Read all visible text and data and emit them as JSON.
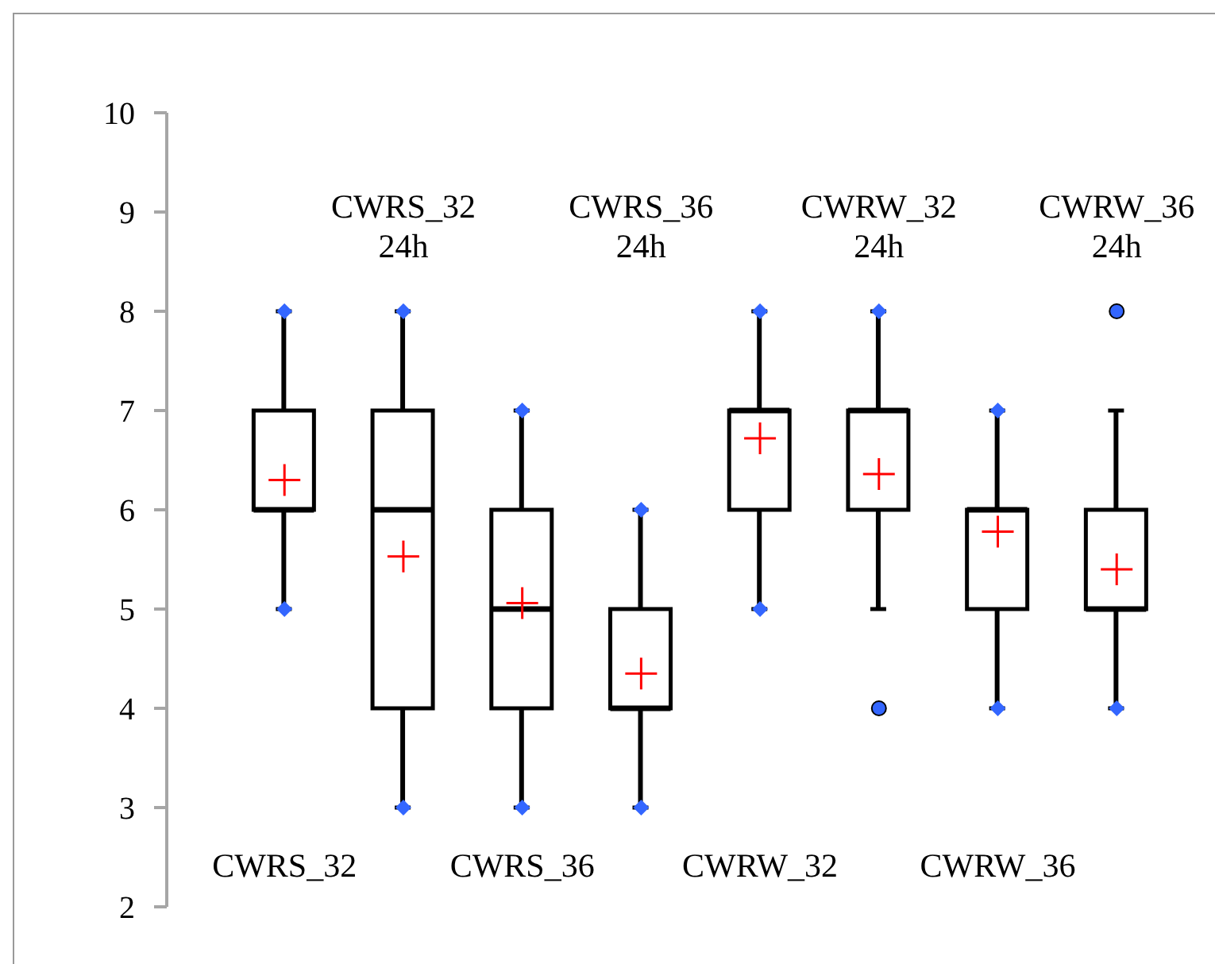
{
  "chart_data": {
    "type": "box",
    "categories": [
      "CWRS_32",
      "CWRS_32 24h",
      "CWRS_36",
      "CWRS_36 24h",
      "CWRW_32",
      "CWRW_32 24h",
      "CWRW_36",
      "CWRW_36 24h"
    ],
    "color": "#000000",
    "series": [
      {
        "type": "scatter",
        "color": "#3366ff",
        "marker": "diamond",
        "x": [
          "CWRS_32",
          "CWRS_32",
          "CWRS_32 24h",
          "CWRS_32 24h",
          "CWRS_36",
          "CWRS_36",
          "CWRS_36 24h",
          "CWRS_36 24h",
          "CWRW_32",
          "CWRW_32",
          "CWRW_32 24h",
          "CWRW_36",
          "CWRW_36",
          "CWRW_36 24h"
        ],
        "values": [
          5,
          8,
          3,
          8,
          3,
          7,
          3,
          6,
          5,
          8,
          8,
          4,
          7,
          4
        ]
      }
    ],
    "boxes": [
      {
        "low": 5,
        "q1": 6,
        "median": 6,
        "q3": 7,
        "high": 8,
        "mean": 6.3
      },
      {
        "low": 3,
        "q1": 4,
        "median": 6,
        "q3": 7,
        "high": 8,
        "mean": 5.53
      },
      {
        "low": 3,
        "q1": 4,
        "median": 5,
        "q3": 6,
        "high": 7,
        "mean": 5.06
      },
      {
        "low": 3,
        "q1": 4,
        "median": 4,
        "q3": 5,
        "high": 6,
        "mean": 4.35
      },
      {
        "low": 5,
        "q1": 6,
        "median": 7,
        "q3": 7,
        "high": 8,
        "mean": 6.72
      },
      {
        "low": 5,
        "q1": 6,
        "median": 7,
        "q3": 7,
        "high": 8,
        "mean": 6.36,
        "outliers": [
          4
        ]
      },
      {
        "low": 4,
        "q1": 5,
        "median": 6,
        "q3": 6,
        "high": 7,
        "mean": 5.78
      },
      {
        "low": 4,
        "q1": 5,
        "median": 5,
        "q3": 6,
        "high": 7,
        "mean": 5.4,
        "outliers": [
          8
        ]
      }
    ],
    "ylim": [
      2,
      10
    ],
    "yticks": [
      2,
      3,
      4,
      5,
      6,
      7,
      8,
      9,
      10
    ],
    "grid": false
  }
}
